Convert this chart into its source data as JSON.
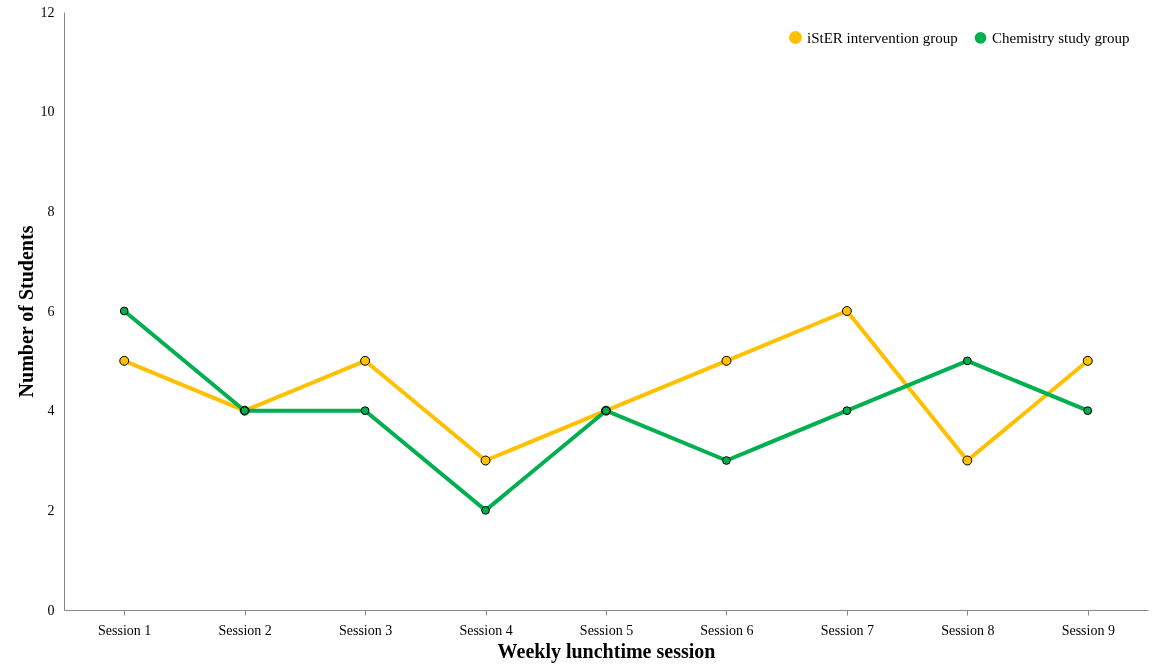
{
  "chart_data": {
    "type": "line",
    "xlabel": "Weekly lunchtime session",
    "ylabel": "Number of Students",
    "categories": [
      "Session 1",
      "Session 2",
      "Session 3",
      "Session 4",
      "Session 5",
      "Session 6",
      "Session 7",
      "Session 8",
      "Session 9"
    ],
    "series": [
      {
        "name": "iStER intervention group",
        "color": "#ffc000",
        "values": [
          5,
          4,
          5,
          3,
          4,
          5,
          6,
          3,
          5
        ]
      },
      {
        "name": "Chemistry study group",
        "color": "#00b050",
        "values": [
          6,
          4,
          4,
          2,
          4,
          3,
          4,
          5,
          4
        ]
      }
    ],
    "ylim": [
      0,
      12
    ],
    "yticks": [
      0,
      2,
      4,
      6,
      8,
      10,
      12
    ],
    "grid": false,
    "legend": "top right",
    "marker": "circle",
    "line_style": "solid"
  }
}
